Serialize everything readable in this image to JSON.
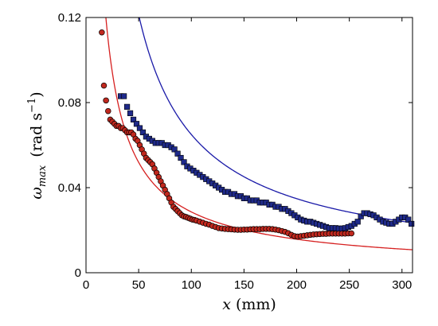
{
  "chart_data": {
    "type": "scatter",
    "xlabel_var": "x",
    "xlabel_unit": "(mm)",
    "ylabel_var": "ω",
    "ylabel_sub": "max",
    "ylabel_unit_pre": "(rad s",
    "ylabel_unit_exp": "−1",
    "ylabel_unit_post": ")",
    "xlim": [
      0,
      310
    ],
    "ylim": [
      0,
      0.12
    ],
    "xticks": [
      0,
      50,
      100,
      150,
      200,
      250,
      300
    ],
    "yticks": [
      0,
      0.04,
      0.08,
      0.12
    ],
    "xtick_labels": [
      "0",
      "50",
      "100",
      "150",
      "200",
      "250",
      "300"
    ],
    "ytick_labels": [
      "0",
      "0.04",
      "0.08",
      "0.12"
    ],
    "grid": false,
    "colors": {
      "red": "#d62020",
      "blue": "#1a1aa8",
      "red_fill": "#c0281e",
      "blue_fill": "#1f2a8a"
    },
    "series": [
      {
        "marker": "circle",
        "color": "#c0281e",
        "x": [
          15,
          17,
          19,
          21,
          23,
          25,
          27,
          29,
          31,
          33,
          35,
          37,
          39,
          41,
          43,
          45,
          47,
          49,
          51,
          53,
          55,
          57,
          59,
          61,
          63,
          65,
          67,
          69,
          71,
          73,
          75,
          77,
          79,
          81,
          83,
          85,
          87,
          89,
          91,
          93,
          95,
          97,
          99,
          101,
          103,
          105,
          108,
          111,
          114,
          117,
          120,
          123,
          126,
          129,
          132,
          135,
          138,
          141,
          144,
          147,
          150,
          153,
          156,
          159,
          162,
          165,
          168,
          171,
          174,
          177,
          180,
          183,
          186,
          189,
          192,
          195,
          198,
          201,
          204,
          207,
          210,
          213,
          216,
          219,
          222,
          225,
          228,
          231,
          234,
          237,
          240,
          243,
          246,
          249,
          252
        ],
        "y": [
          0.113,
          0.088,
          0.081,
          0.076,
          0.072,
          0.071,
          0.07,
          0.069,
          0.069,
          0.068,
          0.068,
          0.067,
          0.066,
          0.066,
          0.066,
          0.065,
          0.063,
          0.062,
          0.06,
          0.058,
          0.056,
          0.054,
          0.053,
          0.052,
          0.051,
          0.049,
          0.047,
          0.045,
          0.043,
          0.041,
          0.039,
          0.037,
          0.035,
          0.033,
          0.031,
          0.03,
          0.029,
          0.028,
          0.027,
          0.0265,
          0.0262,
          0.0258,
          0.0254,
          0.025,
          0.0248,
          0.0245,
          0.024,
          0.0235,
          0.023,
          0.0226,
          0.022,
          0.0215,
          0.021,
          0.0208,
          0.0206,
          0.0205,
          0.0204,
          0.0203,
          0.0202,
          0.0202,
          0.0203,
          0.0203,
          0.0204,
          0.0205,
          0.0205,
          0.0205,
          0.0206,
          0.0206,
          0.0206,
          0.0205,
          0.0203,
          0.02,
          0.0196,
          0.0192,
          0.0186,
          0.0178,
          0.0172,
          0.017,
          0.0172,
          0.0174,
          0.0176,
          0.0178,
          0.018,
          0.0181,
          0.0182,
          0.0183,
          0.0183,
          0.0184,
          0.0184,
          0.0184,
          0.0184,
          0.0184,
          0.0184,
          0.0185,
          0.0185
        ]
      },
      {
        "marker": "square",
        "color": "#1f2a8a",
        "x": [
          33,
          36,
          39,
          42,
          45,
          48,
          51,
          54,
          57,
          60,
          63,
          66,
          69,
          72,
          75,
          78,
          81,
          84,
          87,
          90,
          93,
          96,
          99,
          102,
          105,
          108,
          111,
          114,
          117,
          120,
          123,
          126,
          129,
          132,
          135,
          138,
          141,
          144,
          147,
          150,
          153,
          156,
          159,
          162,
          165,
          168,
          171,
          174,
          177,
          180,
          183,
          186,
          189,
          192,
          195,
          198,
          201,
          204,
          207,
          210,
          213,
          216,
          219,
          222,
          225,
          228,
          231,
          234,
          237,
          240,
          243,
          246,
          249,
          252,
          255,
          258,
          261,
          264,
          267,
          270,
          273,
          276,
          279,
          282,
          285,
          288,
          291,
          294,
          297,
          300,
          303,
          306,
          309
        ],
        "y": [
          0.083,
          0.083,
          0.078,
          0.075,
          0.072,
          0.07,
          0.068,
          0.066,
          0.064,
          0.063,
          0.062,
          0.061,
          0.061,
          0.061,
          0.06,
          0.06,
          0.059,
          0.058,
          0.056,
          0.054,
          0.052,
          0.05,
          0.049,
          0.048,
          0.047,
          0.046,
          0.045,
          0.044,
          0.043,
          0.042,
          0.041,
          0.04,
          0.039,
          0.038,
          0.038,
          0.037,
          0.037,
          0.036,
          0.036,
          0.035,
          0.035,
          0.034,
          0.034,
          0.034,
          0.033,
          0.033,
          0.033,
          0.032,
          0.032,
          0.031,
          0.031,
          0.03,
          0.03,
          0.029,
          0.028,
          0.027,
          0.026,
          0.025,
          0.0245,
          0.024,
          0.024,
          0.0235,
          0.023,
          0.0225,
          0.022,
          0.0215,
          0.021,
          0.021,
          0.021,
          0.0208,
          0.0208,
          0.021,
          0.0215,
          0.022,
          0.023,
          0.024,
          0.0265,
          0.028,
          0.028,
          0.0275,
          0.027,
          0.026,
          0.025,
          0.024,
          0.0235,
          0.023,
          0.023,
          0.024,
          0.025,
          0.026,
          0.026,
          0.025,
          0.023
        ]
      }
    ],
    "fits": [
      {
        "color": "#d62020",
        "form": "a/x^b",
        "a": 1.5,
        "b": 0.86,
        "x_start": 13,
        "x_end": 310
      },
      {
        "color": "#1a1aa8",
        "form": "a/x^b",
        "a": 4.1,
        "b": 0.9,
        "x_start": 17,
        "x_end": 310
      }
    ]
  }
}
